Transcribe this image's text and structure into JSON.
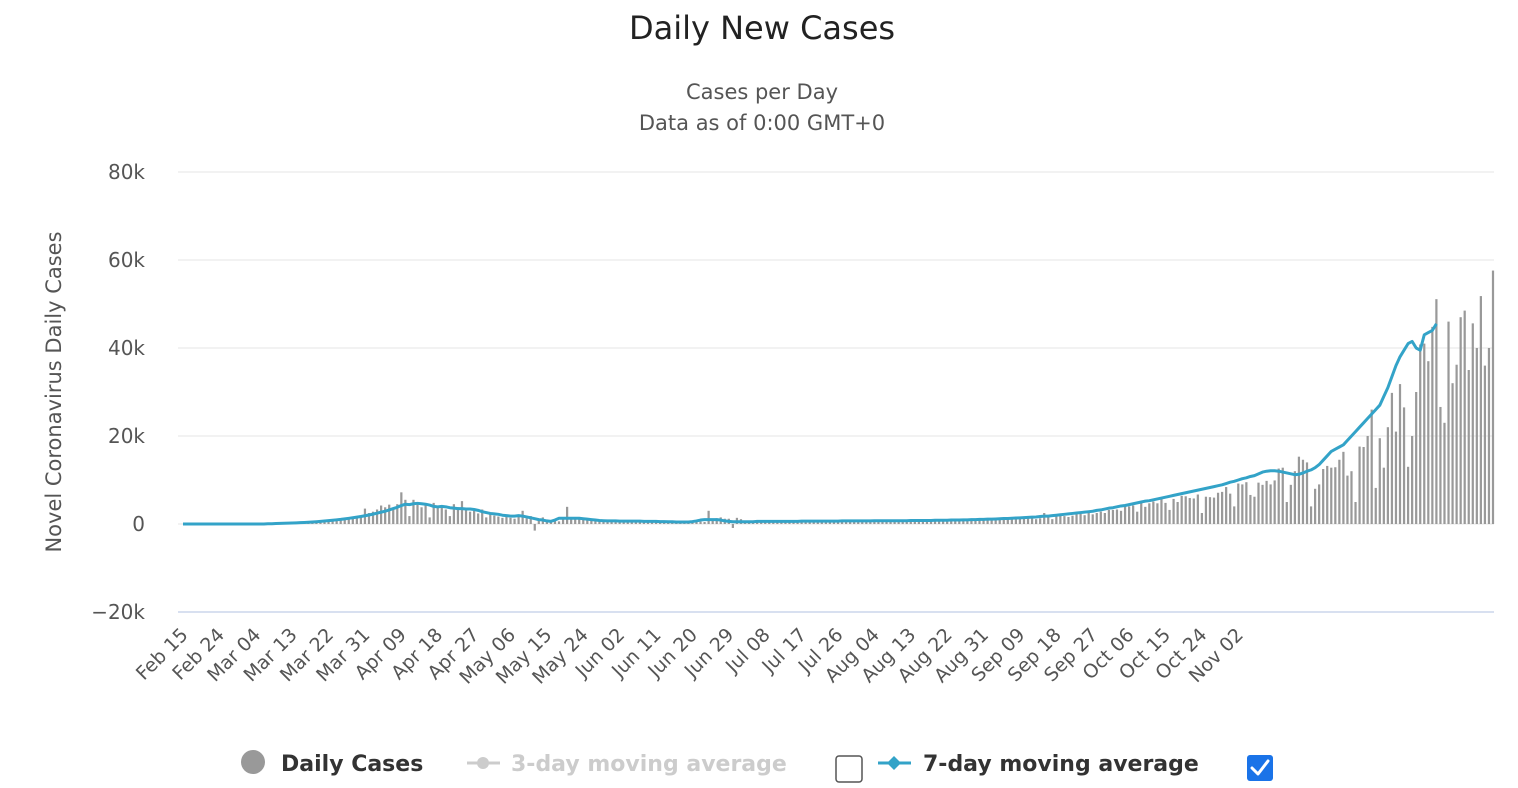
{
  "chart_data": {
    "type": "bar",
    "title": "Daily New Cases",
    "subtitle_line1": "Cases per Day",
    "subtitle_line2": "Data as of 0:00 GMT+0",
    "ylabel": "Novel Coronavirus Daily Cases",
    "xlabel": "",
    "ylim": [
      -20000,
      80000
    ],
    "yticks": [
      -20000,
      0,
      20000,
      40000,
      60000,
      80000
    ],
    "ytick_labels": [
      "−20k",
      "0",
      "20k",
      "40k",
      "60k",
      "80k"
    ],
    "x_start": "Feb 15",
    "x_end": "Nov 05",
    "xtick_labels": [
      "Feb 15",
      "Feb 24",
      "Mar 04",
      "Mar 13",
      "Mar 22",
      "Mar 31",
      "Apr 09",
      "Apr 18",
      "Apr 27",
      "May 06",
      "May 15",
      "May 24",
      "Jun 02",
      "Jun 11",
      "Jun 20",
      "Jun 29",
      "Jul 08",
      "Jul 17",
      "Jul 26",
      "Aug 04",
      "Aug 13",
      "Aug 22",
      "Aug 31",
      "Sep 09",
      "Sep 18",
      "Sep 27",
      "Oct 06",
      "Oct 15",
      "Oct 24",
      "Nov 02"
    ],
    "grid": true,
    "legend_position": "bottom",
    "colors": {
      "bars": "#999999",
      "avg7": "#33a3c8",
      "avg3_disabled": "#cccccc",
      "checkbox": "#1a73e8"
    },
    "series": [
      {
        "name": "Daily Cases",
        "kind": "bar",
        "values": [
          0,
          0,
          0,
          0,
          0,
          0,
          0,
          0,
          0,
          0,
          0,
          0,
          0,
          0,
          0,
          0,
          0,
          0,
          0,
          0,
          50,
          50,
          50,
          100,
          100,
          150,
          150,
          200,
          250,
          300,
          350,
          400,
          500,
          600,
          650,
          750,
          850,
          950,
          1100,
          1200,
          1400,
          1500,
          1700,
          1800,
          2000,
          3500,
          2500,
          2800,
          3300,
          4200,
          3800,
          4400,
          3600,
          4500,
          7200,
          5500,
          1800,
          5500,
          4800,
          3800,
          4500,
          1500,
          4800,
          3800,
          4200,
          3300,
          1800,
          4500,
          3800,
          5200,
          3500,
          2800,
          3000,
          2400,
          3300,
          1500,
          2300,
          1900,
          1700,
          1400,
          2000,
          1400,
          1200,
          2000,
          3000,
          1300,
          1800,
          -1500,
          1000,
          1500,
          900,
          800,
          700,
          600,
          1500,
          3900,
          1100,
          1200,
          1100,
          1300,
          1200,
          1000,
          1100,
          900,
          900,
          800,
          800,
          800,
          700,
          800,
          900,
          600,
          700,
          800,
          700,
          600,
          650,
          700,
          600,
          650,
          600,
          550,
          500,
          500,
          450,
          500,
          450,
          450,
          550,
          450,
          3000,
          700,
          1300,
          1500,
          1200,
          1200,
          -900,
          1400,
          1100,
          600,
          500,
          450,
          650,
          550,
          600,
          700,
          650,
          650,
          700,
          600,
          650,
          600,
          650,
          700,
          650,
          650,
          700,
          650,
          700,
          650,
          700,
          700,
          650,
          750,
          700,
          650,
          700,
          900,
          750,
          700,
          700,
          750,
          800,
          750,
          800,
          700,
          850,
          750,
          800,
          750,
          800,
          750,
          900,
          750,
          800,
          800,
          850,
          800,
          850,
          900,
          800,
          1000,
          800,
          900,
          900,
          1100,
          900,
          950,
          1000,
          1000,
          1100,
          1000,
          1200,
          1100,
          1200,
          1300,
          1200,
          1500,
          1200,
          1300,
          1400,
          1100,
          1300,
          2500,
          1600,
          1100,
          1800,
          2000,
          1800,
          1600,
          1900,
          2200,
          2300,
          2000,
          2700,
          2200,
          2500,
          2800,
          2500,
          3200,
          3200,
          3300,
          3000,
          4300,
          4000,
          4200,
          2800,
          4800,
          3900,
          4700,
          5100,
          4700,
          6000,
          4800,
          3200,
          5700,
          5000,
          6400,
          6300,
          5900,
          5800,
          6700,
          2500,
          6200,
          6100,
          6000,
          7100,
          7300,
          8400,
          6900,
          4000,
          9200,
          9000,
          9500,
          6600,
          6200,
          9400,
          8900,
          9800,
          9000,
          9900,
          12600,
          12800,
          5000,
          8900,
          12000,
          15300,
          14600,
          14000,
          4000,
          8000,
          9000,
          12500,
          13200,
          12800,
          12900,
          14600,
          16400,
          11000,
          12000,
          5000,
          17600,
          17500,
          20000,
          26000,
          8200,
          19500,
          12800,
          22000,
          29800,
          21000,
          31800,
          26500,
          13000,
          20000,
          30000,
          40800,
          41000,
          37000,
          44800,
          51100,
          26600,
          23000,
          46000,
          32000,
          36200,
          47000,
          48500,
          35000,
          45600,
          40000,
          51800,
          36000,
          40000,
          57600
        ]
      },
      {
        "name": "3-day moving average",
        "kind": "line",
        "disabled": true,
        "values": []
      },
      {
        "name": "7-day moving average",
        "kind": "line",
        "enabled": true,
        "values": [
          0,
          0,
          0,
          0,
          0,
          0,
          0,
          0,
          0,
          0,
          0,
          0,
          0,
          0,
          0,
          0,
          0,
          0,
          0,
          0,
          0,
          50,
          70,
          100,
          130,
          160,
          190,
          220,
          260,
          300,
          350,
          400,
          450,
          520,
          600,
          680,
          760,
          850,
          950,
          1050,
          1170,
          1290,
          1420,
          1560,
          1700,
          1880,
          2050,
          2250,
          2450,
          2700,
          2900,
          3200,
          3500,
          3800,
          4200,
          4500,
          4400,
          4600,
          4700,
          4600,
          4500,
          4300,
          4000,
          3900,
          4000,
          3900,
          3700,
          3600,
          3500,
          3500,
          3400,
          3400,
          3300,
          3100,
          2800,
          2600,
          2400,
          2300,
          2200,
          2000,
          1900,
          1800,
          1800,
          1900,
          1800,
          1600,
          1400,
          1200,
          1000,
          900,
          700,
          600,
          900,
          1300,
          1300,
          1300,
          1300,
          1300,
          1300,
          1200,
          1100,
          1000,
          900,
          800,
          750,
          700,
          700,
          700,
          650,
          650,
          650,
          650,
          650,
          650,
          600,
          600,
          600,
          600,
          550,
          550,
          500,
          500,
          450,
          450,
          450,
          450,
          550,
          700,
          900,
          1000,
          1000,
          1000,
          1000,
          900,
          700,
          600,
          500,
          500,
          500,
          500,
          500,
          500,
          600,
          600,
          600,
          600,
          600,
          600,
          600,
          600,
          600,
          600,
          600,
          650,
          650,
          650,
          650,
          650,
          650,
          650,
          650,
          650,
          650,
          700,
          700,
          700,
          700,
          700,
          700,
          700,
          700,
          750,
          750,
          750,
          750,
          750,
          750,
          750,
          750,
          750,
          800,
          800,
          800,
          800,
          800,
          800,
          850,
          850,
          850,
          850,
          900,
          900,
          900,
          950,
          950,
          1000,
          1000,
          1050,
          1050,
          1100,
          1100,
          1150,
          1200,
          1250,
          1250,
          1300,
          1350,
          1400,
          1450,
          1500,
          1550,
          1600,
          1700,
          1800,
          1800,
          1900,
          2000,
          2100,
          2200,
          2300,
          2400,
          2500,
          2600,
          2700,
          2800,
          2900,
          3100,
          3200,
          3400,
          3600,
          3700,
          3900,
          4100,
          4200,
          4400,
          4600,
          4800,
          5000,
          5200,
          5300,
          5500,
          5700,
          5900,
          6100,
          6300,
          6500,
          6700,
          6900,
          7100,
          7300,
          7500,
          7700,
          7900,
          8100,
          8300,
          8500,
          8700,
          8900,
          9200,
          9500,
          9700,
          10000,
          10300,
          10500,
          10800,
          11000,
          11400,
          11800,
          12000,
          12100,
          12100,
          12000,
          11800,
          11600,
          11400,
          11200,
          11300,
          11600,
          12000,
          12300,
          12800,
          13500,
          14500,
          15500,
          16500,
          17000,
          17500,
          18000,
          19000,
          20000,
          21000,
          22000,
          23000,
          24000,
          25000,
          26000,
          27000,
          29000,
          31000,
          33500,
          36000,
          38000,
          39500,
          41000,
          41500,
          40000,
          39500,
          43000,
          43500,
          44000,
          45500
        ]
      }
    ]
  },
  "legend": {
    "daily_label": "Daily Cases",
    "avg3_label": "3-day moving average",
    "avg7_label": "7-day moving average"
  }
}
